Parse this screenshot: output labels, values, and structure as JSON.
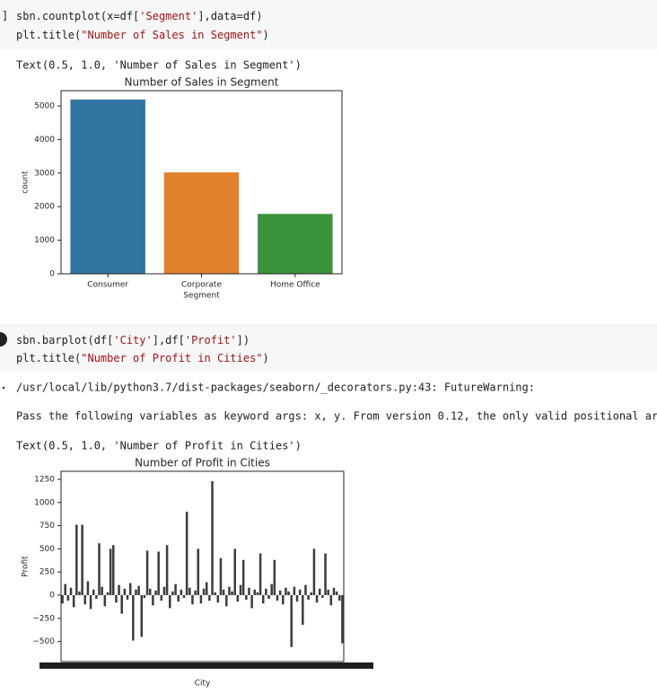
{
  "cells": [
    {
      "prompt": "]",
      "code": [
        [
          "sbn.countplot(x=df[",
          "'Segment'",
          "],data=df)"
        ],
        [
          "plt.title(",
          "\"Number of Sales in Segment\"",
          ")"
        ]
      ],
      "outputs": [
        "Text(0.5, 1.0, 'Number of Sales in Segment')"
      ]
    },
    {
      "code": [
        [
          "sbn.barplot(df[",
          "'City'",
          "],df[",
          "'Profit'",
          "])"
        ],
        [
          "plt.title(",
          "\"Number of Profit in Cities\"",
          ")"
        ]
      ],
      "outputs": [
        "/usr/local/lib/python3.7/dist-packages/seaborn/_decorators.py:43: FutureWarning:",
        "Pass the following variables as keyword args: x, y. From version 0.12, the only valid positional ar",
        "Text(0.5, 1.0, 'Number of Profit in Cities')"
      ]
    }
  ],
  "chart_data": [
    {
      "type": "bar",
      "title": "Number of Sales in Segment",
      "categories": [
        "Consumer",
        "Corporate",
        "Home Office"
      ],
      "values": [
        5191,
        3020,
        1783
      ],
      "colors": [
        "#3274a1",
        "#e1812c",
        "#3a923a"
      ],
      "xlabel": "Segment",
      "ylabel": "count",
      "ylim": [
        0,
        5455
      ],
      "yticks": [
        0,
        1000,
        2000,
        3000,
        4000,
        5000
      ]
    },
    {
      "type": "bar",
      "title": "Number of Profit in Cities",
      "categories": [
        null,
        null,
        null,
        null,
        null,
        null,
        null,
        null,
        null,
        null,
        null,
        null,
        null,
        null,
        null,
        null,
        null,
        null,
        null,
        null,
        null,
        null,
        null,
        null,
        null,
        null,
        null,
        null,
        null,
        null,
        null,
        null,
        null,
        null,
        null,
        null,
        null,
        null,
        null,
        null,
        null,
        null,
        null,
        null,
        null,
        null,
        null,
        null,
        null,
        null,
        null,
        null,
        null,
        null,
        null,
        null,
        null,
        null,
        null,
        null,
        null,
        null,
        null,
        null,
        null,
        null,
        null,
        null,
        null,
        null,
        null,
        null,
        null,
        null,
        null,
        null,
        null,
        null,
        null,
        null,
        null,
        null,
        null,
        null,
        null,
        null,
        null,
        null,
        null,
        null,
        null,
        null,
        null,
        null,
        null,
        null,
        null,
        null,
        null,
        null
      ],
      "values": [
        -90,
        120,
        -60,
        80,
        -130,
        760,
        40,
        760,
        -100,
        150,
        -150,
        60,
        -40,
        560,
        90,
        -120,
        30,
        500,
        540,
        -80,
        110,
        -200,
        70,
        -50,
        130,
        -490,
        60,
        100,
        -450,
        -30,
        480,
        70,
        -110,
        50,
        470,
        -60,
        90,
        540,
        -140,
        40,
        120,
        -70,
        60,
        -30,
        900,
        80,
        -100,
        50,
        500,
        -90,
        70,
        140,
        -60,
        1230,
        30,
        -80,
        400,
        60,
        -120,
        90,
        40,
        500,
        -70,
        110,
        380,
        -50,
        80,
        -140,
        60,
        30,
        450,
        -90,
        70,
        -40,
        120,
        380,
        -60,
        50,
        -100,
        80,
        40,
        -560,
        90,
        -70,
        60,
        -320,
        110,
        -50,
        30,
        500,
        -80,
        70,
        -30,
        450,
        60,
        -110,
        80,
        40,
        -60,
        -520
      ],
      "color": "#3d3d3d",
      "xlabel": "City",
      "ylabel": "Profit",
      "ylim": [
        -717,
        1337
      ],
      "yticks": [
        {
          "value": -500,
          "label": "−500"
        },
        {
          "value": -250,
          "label": "−250"
        },
        0,
        250,
        500,
        750,
        1000,
        1250
      ]
    }
  ]
}
